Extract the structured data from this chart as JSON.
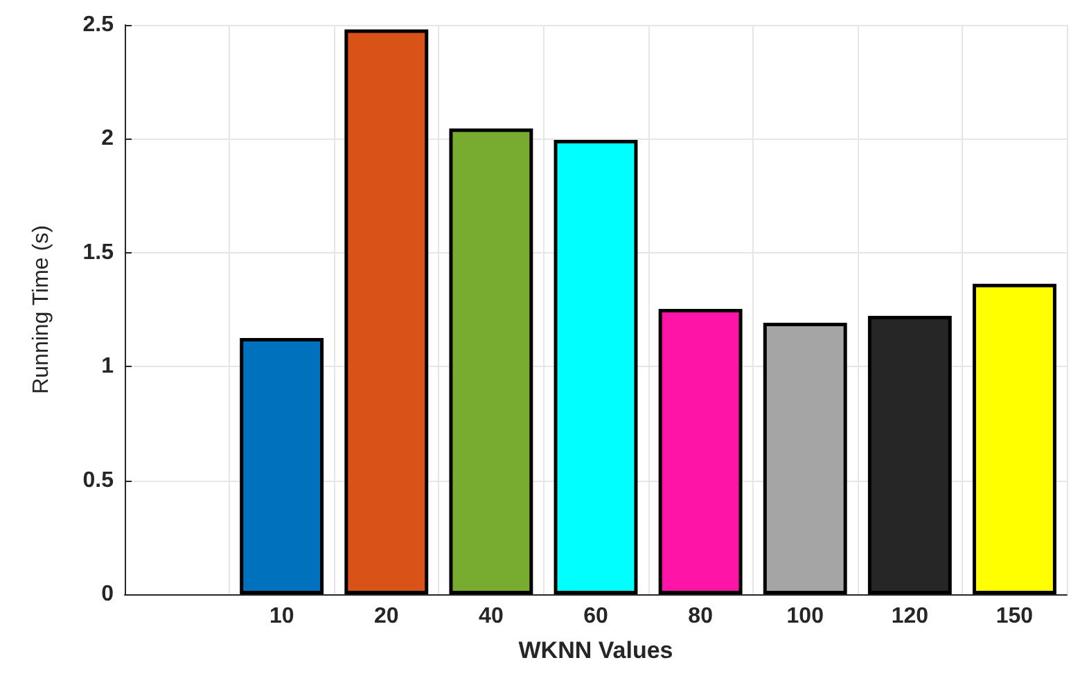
{
  "chart_data": {
    "type": "bar",
    "xlabel": "WKNN Values",
    "ylabel": "Running Time (s)",
    "categories": [
      null,
      "10",
      "20",
      "40",
      "60",
      "80",
      "100",
      "120",
      "150"
    ],
    "values": [
      null,
      1.125,
      2.48,
      2.045,
      1.995,
      1.253,
      1.192,
      1.223,
      1.363
    ],
    "colors": [
      null,
      "#0072bd",
      "#d95319",
      "#77ac30",
      "#00ffff",
      "#ff14a8",
      "#a5a5a5",
      "#262626",
      "#ffff00"
    ],
    "ylim": [
      0,
      2.5
    ],
    "yticks": [
      0,
      0.5,
      1,
      1.5,
      2,
      2.5
    ],
    "grid": true
  }
}
